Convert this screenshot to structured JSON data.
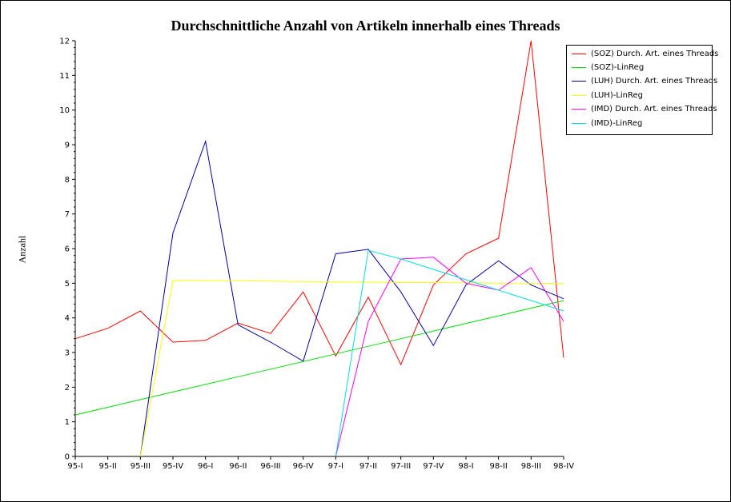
{
  "chart_data": {
    "type": "line",
    "title": "Durchschnittliche Anzahl von Artikeln innerhalb eines Threads",
    "xlabel": "",
    "ylabel": "Anzahl",
    "categories": [
      "95-I",
      "95-II",
      "95-III",
      "95-IV",
      "96-I",
      "96-II",
      "96-III",
      "96-IV",
      "97-I",
      "97-II",
      "97-III",
      "97-IV",
      "98-I",
      "98-II",
      "98-III",
      "98-IV"
    ],
    "yticks": [
      0,
      1,
      2,
      3,
      4,
      5,
      6,
      7,
      8,
      9,
      10,
      11,
      12
    ],
    "ylim": [
      0,
      12
    ],
    "grid": false,
    "legend_position": "top-right",
    "series": [
      {
        "name": "(SOZ) Durch. Art. eines Threads",
        "color": "#ff0000",
        "values": [
          3.4,
          3.7,
          4.2,
          3.3,
          3.35,
          3.85,
          3.55,
          4.75,
          2.9,
          4.6,
          2.65,
          4.95,
          5.85,
          6.3,
          12.0,
          2.85
        ]
      },
      {
        "name": "(SOZ)-LinReg",
        "color": "#00e000",
        "values": [
          1.2,
          1.42,
          1.64,
          1.86,
          2.08,
          2.3,
          2.52,
          2.74,
          2.96,
          3.18,
          3.4,
          3.62,
          3.84,
          4.06,
          4.28,
          4.5
        ]
      },
      {
        "name": "(LUH) Durch. Art. eines Threads",
        "color": "#0000a0",
        "values": [
          null,
          null,
          0,
          6.45,
          9.1,
          3.8,
          3.3,
          2.75,
          5.85,
          5.98,
          4.75,
          3.2,
          4.95,
          5.65,
          4.95,
          4.55
        ]
      },
      {
        "name": "(LUH)-LinReg",
        "color": "#ffff00",
        "values": [
          null,
          null,
          0,
          5.08,
          5.08,
          5.07,
          5.06,
          5.05,
          5.04,
          5.03,
          5.02,
          5.02,
          5.01,
          5.0,
          5.0,
          4.99
        ]
      },
      {
        "name": "(IMD) Durch. Art. eines Threads",
        "color": "#ff00ff",
        "values": [
          null,
          null,
          null,
          null,
          null,
          null,
          null,
          null,
          0,
          3.9,
          5.7,
          5.75,
          5.0,
          4.8,
          5.45,
          3.9
        ]
      },
      {
        "name": "(IMD)-LinReg",
        "color": "#00e0e0",
        "values": [
          null,
          null,
          null,
          null,
          null,
          null,
          null,
          null,
          0,
          5.95,
          5.7,
          5.4,
          5.1,
          4.8,
          4.5,
          4.2
        ]
      }
    ]
  }
}
